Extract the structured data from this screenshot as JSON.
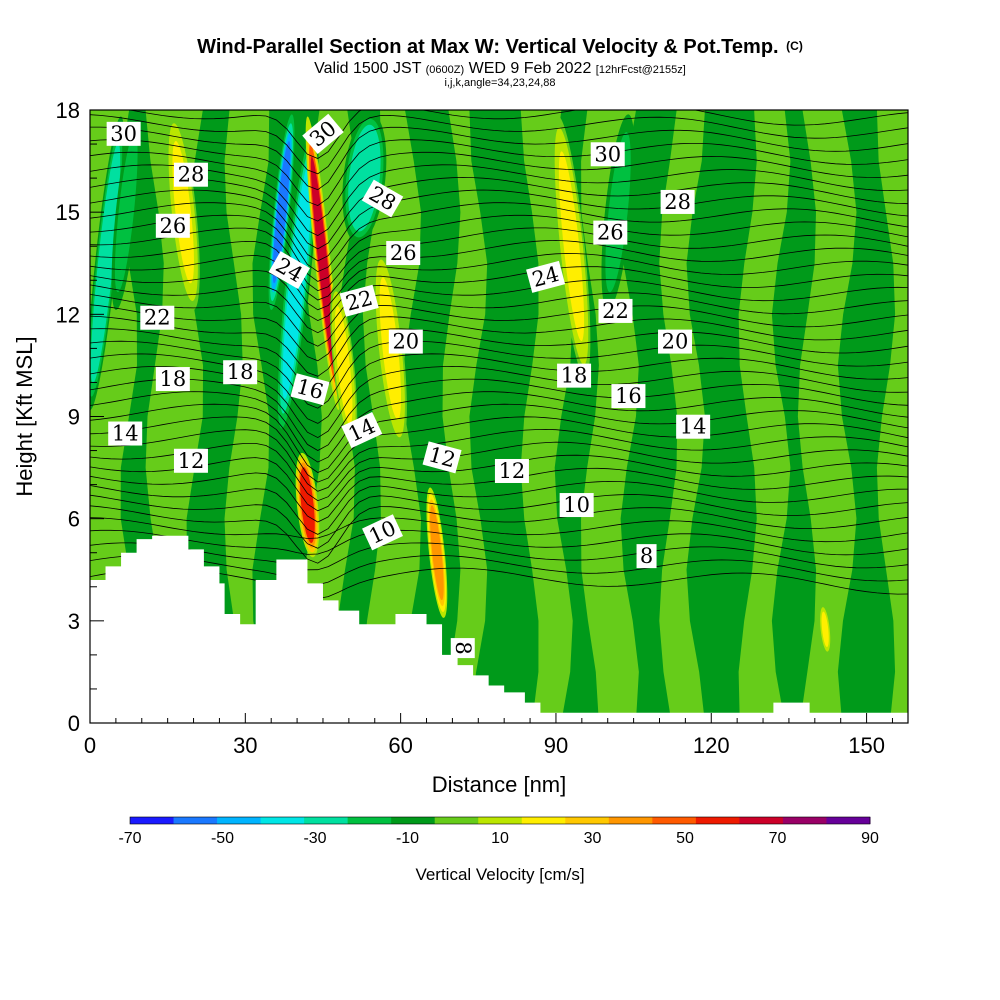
{
  "header": {
    "title": "Wind-Parallel Section at Max W: Vertical Velocity & Pot.Temp.",
    "copyright": "(C)",
    "subtitle_main": "Valid 1500 JST",
    "subtitle_utc": "(0600Z)",
    "subtitle_date": "WED 9 Feb 2022",
    "subtitle_fcst": "[12hrFcst@2155z]",
    "subtitle_params": "i,j,k,angle=34,23,24,88"
  },
  "chart_data": {
    "type": "heatmap",
    "xlabel": "Distance [nm]",
    "ylabel": "Height [Kft MSL]",
    "xlim": [
      0,
      158
    ],
    "ylim": [
      0,
      18
    ],
    "xticks": [
      0,
      30,
      60,
      90,
      120,
      150
    ],
    "yticks": [
      0,
      3,
      6,
      9,
      12,
      15,
      18
    ],
    "colorbar": {
      "title": "Vertical Velocity [cm/s]",
      "levels": [
        -70,
        -60,
        -50,
        -40,
        -30,
        -20,
        -10,
        0,
        10,
        20,
        30,
        40,
        50,
        60,
        70,
        80,
        90
      ],
      "tick_labels": [
        "-70",
        "-50",
        "-30",
        "-10",
        "10",
        "30",
        "50",
        "70",
        "90"
      ],
      "colors": [
        "#1a1aff",
        "#1a78ff",
        "#00b4ff",
        "#00e6e6",
        "#00e0a0",
        "#00c040",
        "#009a1a",
        "#66cc1a",
        "#bbe600",
        "#ffee00",
        "#ffc800",
        "#ff9600",
        "#ff5a00",
        "#ee1a00",
        "#cc0028",
        "#990066",
        "#660099"
      ]
    },
    "terrain": [
      {
        "x": 0,
        "z": 4.2
      },
      {
        "x": 3,
        "z": 4.2
      },
      {
        "x": 3,
        "z": 4.6
      },
      {
        "x": 6,
        "z": 4.6
      },
      {
        "x": 6,
        "z": 5.0
      },
      {
        "x": 9,
        "z": 5.0
      },
      {
        "x": 9,
        "z": 5.4
      },
      {
        "x": 12,
        "z": 5.4
      },
      {
        "x": 12,
        "z": 5.5
      },
      {
        "x": 19,
        "z": 5.5
      },
      {
        "x": 19,
        "z": 5.1
      },
      {
        "x": 22,
        "z": 5.1
      },
      {
        "x": 22,
        "z": 4.6
      },
      {
        "x": 25,
        "z": 4.6
      },
      {
        "x": 25,
        "z": 4.1
      },
      {
        "x": 26,
        "z": 4.1
      },
      {
        "x": 26,
        "z": 3.2
      },
      {
        "x": 29,
        "z": 3.2
      },
      {
        "x": 29,
        "z": 2.9
      },
      {
        "x": 32,
        "z": 2.9
      },
      {
        "x": 32,
        "z": 4.2
      },
      {
        "x": 36,
        "z": 4.2
      },
      {
        "x": 36,
        "z": 4.8
      },
      {
        "x": 42,
        "z": 4.8
      },
      {
        "x": 42,
        "z": 4.1
      },
      {
        "x": 45,
        "z": 4.1
      },
      {
        "x": 45,
        "z": 3.6
      },
      {
        "x": 48,
        "z": 3.6
      },
      {
        "x": 48,
        "z": 3.3
      },
      {
        "x": 52,
        "z": 3.3
      },
      {
        "x": 52,
        "z": 2.9
      },
      {
        "x": 59,
        "z": 2.9
      },
      {
        "x": 59,
        "z": 3.2
      },
      {
        "x": 65,
        "z": 3.2
      },
      {
        "x": 65,
        "z": 2.9
      },
      {
        "x": 68,
        "z": 2.9
      },
      {
        "x": 68,
        "z": 2.0
      },
      {
        "x": 71,
        "z": 2.0
      },
      {
        "x": 71,
        "z": 1.7
      },
      {
        "x": 74,
        "z": 1.7
      },
      {
        "x": 74,
        "z": 1.4
      },
      {
        "x": 77,
        "z": 1.4
      },
      {
        "x": 77,
        "z": 1.1
      },
      {
        "x": 80,
        "z": 1.1
      },
      {
        "x": 80,
        "z": 0.9
      },
      {
        "x": 84,
        "z": 0.9
      },
      {
        "x": 84,
        "z": 0.6
      },
      {
        "x": 87,
        "z": 0.6
      },
      {
        "x": 87,
        "z": 0.3
      },
      {
        "x": 132,
        "z": 0.3
      },
      {
        "x": 132,
        "z": 0.6
      },
      {
        "x": 139,
        "z": 0.6
      },
      {
        "x": 139,
        "z": 0.3
      },
      {
        "x": 158,
        "z": 0.3
      },
      {
        "x": 158,
        "z": 0
      },
      {
        "x": 0,
        "z": 0
      }
    ],
    "w_features": [
      {
        "x": 3,
        "z_bottom": 9,
        "z_top": 18,
        "width": 4,
        "w": -30
      },
      {
        "x": 7,
        "z_bottom": 12,
        "z_top": 18,
        "width": 4,
        "w": -20
      },
      {
        "x": 18,
        "z_bottom": 12,
        "z_top": 18,
        "width": 5,
        "w": 20
      },
      {
        "x": 37,
        "z_bottom": 12,
        "z_top": 18,
        "width": 3,
        "w": -60
      },
      {
        "x": 40,
        "z_bottom": 8,
        "z_top": 18,
        "width": 5,
        "w": -40
      },
      {
        "x": 45,
        "z_bottom": 9,
        "z_top": 18,
        "width": 3,
        "w": 70
      },
      {
        "x": 53,
        "z_bottom": 14,
        "z_top": 18,
        "width": 8,
        "w": -30
      },
      {
        "x": 42,
        "z_bottom": 4.8,
        "z_top": 8,
        "width": 4,
        "w": 60
      },
      {
        "x": 49,
        "z_bottom": 8,
        "z_top": 13,
        "width": 4,
        "w": 20
      },
      {
        "x": 58,
        "z_bottom": 8,
        "z_top": 14,
        "width": 5,
        "w": 20
      },
      {
        "x": 67,
        "z_bottom": 3,
        "z_top": 7,
        "width": 3,
        "w": 40
      },
      {
        "x": 93,
        "z_bottom": 10,
        "z_top": 18,
        "width": 5,
        "w": 20
      },
      {
        "x": 102,
        "z_bottom": 12,
        "z_top": 18,
        "width": 5,
        "w": -20
      },
      {
        "x": 142,
        "z_bottom": 2,
        "z_top": 3.5,
        "width": 2,
        "w": 20
      }
    ],
    "theta_contours": [
      {
        "label": "8",
        "z": 4.6
      },
      {
        "label": "10",
        "z": 5.8
      },
      {
        "label": "12",
        "z": 7.7
      },
      {
        "label": "14",
        "z": 8.7
      },
      {
        "label": "16",
        "z": 10.1
      },
      {
        "label": "18",
        "z": 10.6
      },
      {
        "label": "20",
        "z": 11.3
      },
      {
        "label": "22",
        "z": 12.0
      },
      {
        "label": "24",
        "z": 13.5
      },
      {
        "label": "26",
        "z": 14.3
      },
      {
        "label": "28",
        "z": 15.4
      },
      {
        "label": "30",
        "z": 16.9
      }
    ],
    "contour_labels": [
      {
        "text": "30",
        "x": 6.5,
        "z": 17.3,
        "angle": 0
      },
      {
        "text": "28",
        "x": 19.5,
        "z": 16.1,
        "angle": 0
      },
      {
        "text": "26",
        "x": 16,
        "z": 14.6,
        "angle": 0
      },
      {
        "text": "22",
        "x": 13,
        "z": 11.9,
        "angle": 0
      },
      {
        "text": "18",
        "x": 16,
        "z": 10.1,
        "angle": 0
      },
      {
        "text": "14",
        "x": 6.8,
        "z": 8.5,
        "angle": 0
      },
      {
        "text": "12",
        "x": 19.5,
        "z": 7.7,
        "angle": 0
      },
      {
        "text": "18",
        "x": 29,
        "z": 10.3,
        "angle": 0
      },
      {
        "text": "24",
        "x": 38.5,
        "z": 13.3,
        "angle": 30
      },
      {
        "text": "16",
        "x": 42.5,
        "z": 9.8,
        "angle": 15
      },
      {
        "text": "30",
        "x": 45,
        "z": 17.3,
        "angle": -40
      },
      {
        "text": "28",
        "x": 56.5,
        "z": 15.4,
        "angle": 30
      },
      {
        "text": "26",
        "x": 60.5,
        "z": 13.8,
        "angle": 0
      },
      {
        "text": "22",
        "x": 52,
        "z": 12.4,
        "angle": -15
      },
      {
        "text": "20",
        "x": 61,
        "z": 11.2,
        "angle": 0
      },
      {
        "text": "14",
        "x": 52.5,
        "z": 8.6,
        "angle": -25
      },
      {
        "text": "12",
        "x": 68,
        "z": 7.8,
        "angle": 15
      },
      {
        "text": "10",
        "x": 56.5,
        "z": 5.6,
        "angle": -25
      },
      {
        "text": "8",
        "x": 72,
        "z": 2.2,
        "angle": 90
      },
      {
        "text": "12",
        "x": 81.5,
        "z": 7.4,
        "angle": 0
      },
      {
        "text": "10",
        "x": 94,
        "z": 6.4,
        "angle": 0
      },
      {
        "text": "8",
        "x": 107.5,
        "z": 4.9,
        "angle": 0
      },
      {
        "text": "24",
        "x": 88,
        "z": 13.1,
        "angle": -15
      },
      {
        "text": "18",
        "x": 93.5,
        "z": 10.2,
        "angle": 0
      },
      {
        "text": "16",
        "x": 104,
        "z": 9.6,
        "angle": 0
      },
      {
        "text": "30",
        "x": 100,
        "z": 16.7,
        "angle": 0
      },
      {
        "text": "26",
        "x": 100.5,
        "z": 14.4,
        "angle": 0
      },
      {
        "text": "22",
        "x": 101.5,
        "z": 12.1,
        "angle": 0
      },
      {
        "text": "28",
        "x": 113.5,
        "z": 15.3,
        "angle": 0
      },
      {
        "text": "20",
        "x": 113,
        "z": 11.2,
        "angle": 0
      },
      {
        "text": "14",
        "x": 116.5,
        "z": 8.7,
        "angle": 0
      }
    ]
  }
}
